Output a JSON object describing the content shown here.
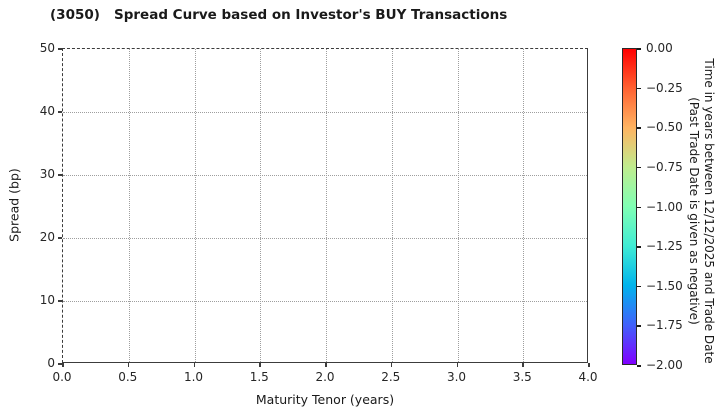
{
  "chart_data": {
    "type": "scatter",
    "title": "(3050)   Spread Curve based on Investor's BUY Transactions",
    "xlabel": "Maturity Tenor (years)",
    "ylabel": "Spread (bp)",
    "xlim": [
      0.0,
      4.0
    ],
    "ylim": [
      0,
      50
    ],
    "x_ticks": [
      "0.0",
      "0.5",
      "1.0",
      "1.5",
      "2.0",
      "2.5",
      "3.0",
      "3.5",
      "4.0"
    ],
    "y_ticks": [
      "0",
      "10",
      "20",
      "30",
      "40",
      "50"
    ],
    "grid": true,
    "grid_style": "dotted",
    "series": [],
    "points": [],
    "legend": null,
    "colorbar": {
      "label_line1": "Time in years between 12/12/2025 and Trade Date",
      "label_line2": "(Past Trade Date is given as negative)",
      "ticks": [
        "0.00",
        "−0.25",
        "−0.50",
        "−0.75",
        "−1.00",
        "−1.25",
        "−1.50",
        "−1.75",
        "−2.00"
      ],
      "value_range": [
        0.0,
        -2.0
      ],
      "colormap": "rainbow",
      "gradient_stops_top_to_bottom": [
        "#ff0000",
        "#ff6232",
        "#ffb462",
        "#bfec8e",
        "#80ffb4",
        "#40ecd4",
        "#00b4ec",
        "#4062fa",
        "#8000ff"
      ]
    }
  }
}
